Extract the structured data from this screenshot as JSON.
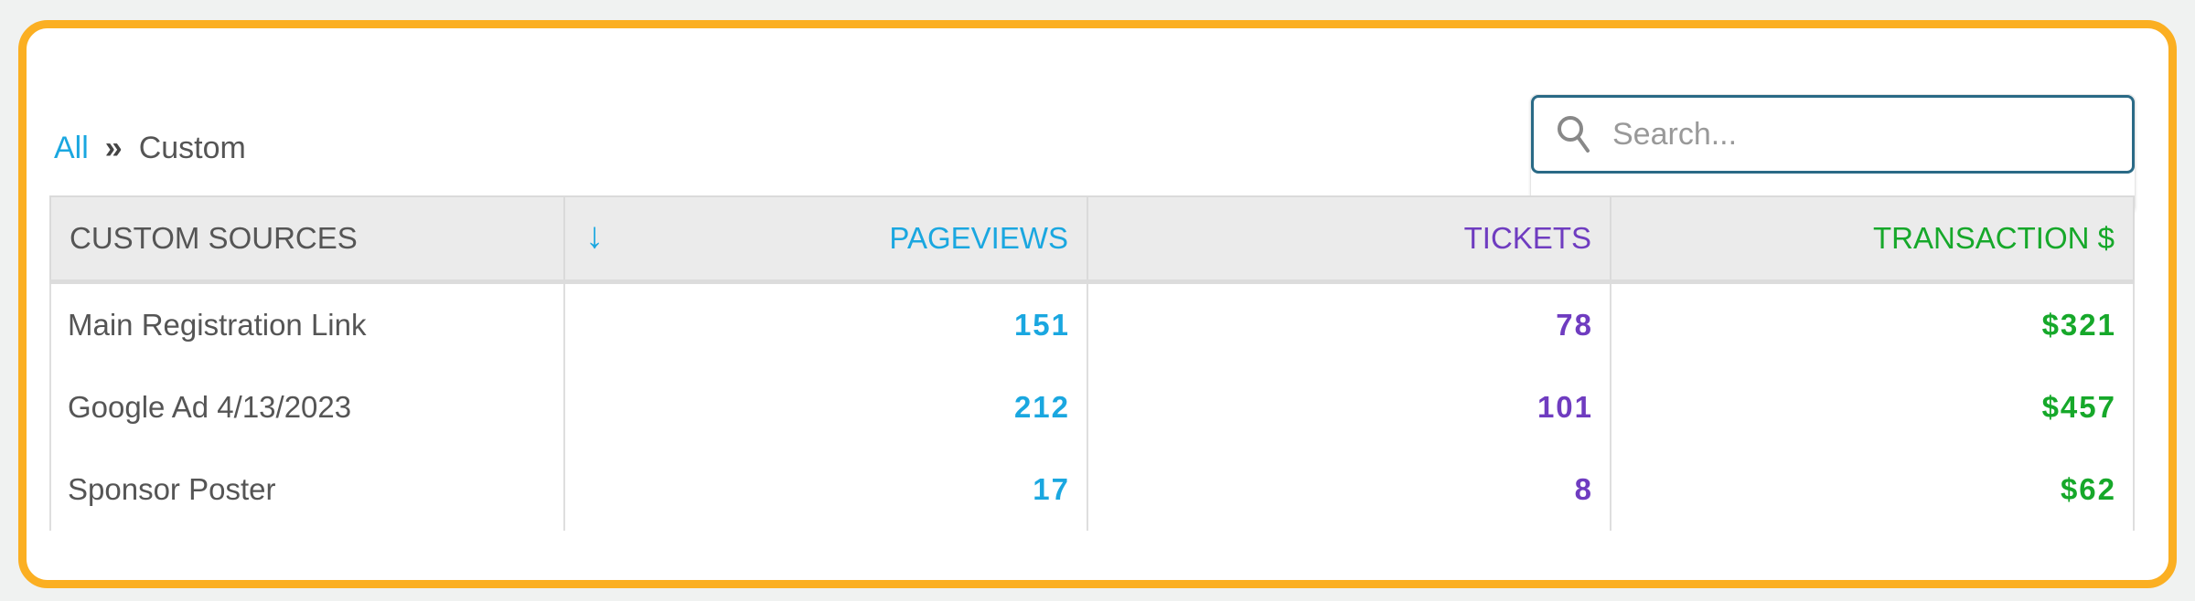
{
  "breadcrumb": {
    "root": "All",
    "separator": "»",
    "current": "Custom"
  },
  "search": {
    "placeholder": "Search...",
    "value": ""
  },
  "colors": {
    "accent_border": "#fbaf22",
    "pageviews": "#1aa7e0",
    "tickets": "#6f3cc0",
    "transactions": "#16a82a"
  },
  "table": {
    "headers": [
      "CUSTOM SOURCES",
      "PAGEVIEWS",
      "TICKETS",
      "TRANSACTION $"
    ],
    "sort_icon": "arrow-down-icon",
    "sorted_column": "PAGEVIEWS",
    "rows": [
      {
        "source": "Main Registration Link",
        "pageviews": "151",
        "tickets": "78",
        "transaction": "$321"
      },
      {
        "source": "Google Ad 4/13/2023",
        "pageviews": "212",
        "tickets": "101",
        "transaction": "$457"
      },
      {
        "source": "Sponsor Poster",
        "pageviews": "17",
        "tickets": "8",
        "transaction": "$62"
      }
    ]
  }
}
